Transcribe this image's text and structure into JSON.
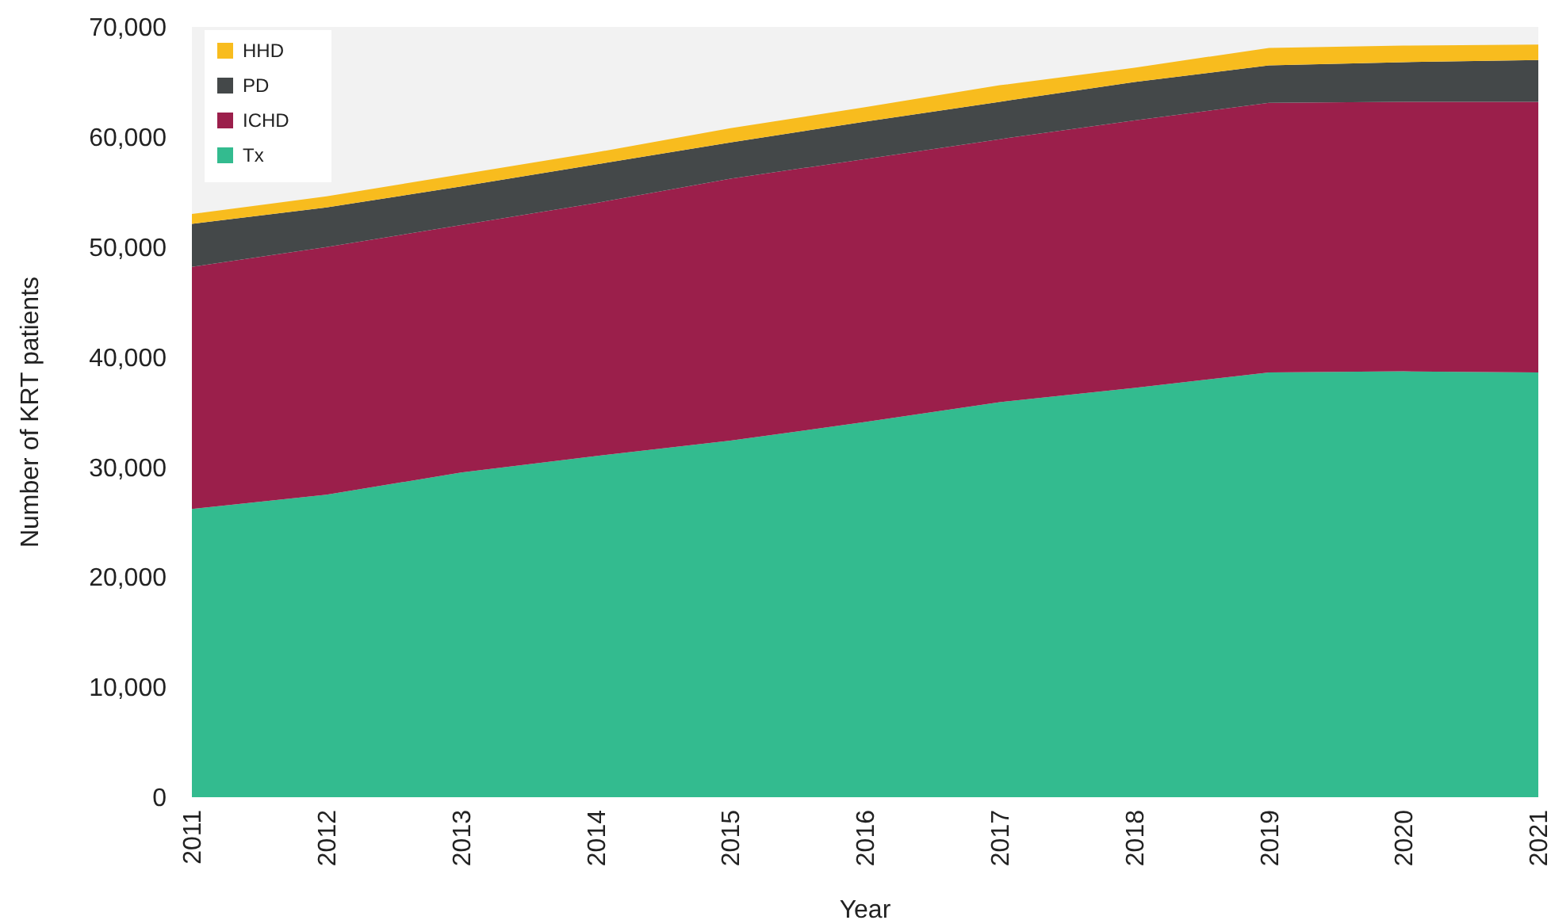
{
  "chart_data": {
    "type": "area",
    "stacked": true,
    "xlabel": "Year",
    "ylabel": "Number of KRT patients",
    "categories": [
      "2011",
      "2012",
      "2013",
      "2014",
      "2015",
      "2016",
      "2017",
      "2018",
      "2019",
      "2020",
      "2021"
    ],
    "ylim": [
      0,
      70000
    ],
    "yticks": [
      {
        "value": 0,
        "label": "0"
      },
      {
        "value": 10000,
        "label": "10,000"
      },
      {
        "value": 20000,
        "label": "20,000"
      },
      {
        "value": 30000,
        "label": "30,000"
      },
      {
        "value": 40000,
        "label": "40,000"
      },
      {
        "value": 50000,
        "label": "50,000"
      },
      {
        "value": 60000,
        "label": "60,000"
      },
      {
        "value": 70000,
        "label": "70,000"
      }
    ],
    "grid": false,
    "legend": "top left",
    "series": [
      {
        "name": "Tx",
        "color": "#33bb8f",
        "values": [
          26200,
          27500,
          29500,
          31000,
          32400,
          34100,
          35900,
          37200,
          38600,
          38700,
          38600
        ]
      },
      {
        "name": "ICHD",
        "color": "#9b1f4b",
        "values": [
          22000,
          22500,
          22500,
          23000,
          23800,
          23900,
          23900,
          24300,
          24500,
          24500,
          24600
        ]
      },
      {
        "name": "PD",
        "color": "#444849",
        "values": [
          3900,
          3600,
          3500,
          3500,
          3300,
          3400,
          3400,
          3500,
          3400,
          3600,
          3800
        ]
      },
      {
        "name": "HHD",
        "color": "#f8bc1e",
        "values": [
          900,
          1000,
          1100,
          1100,
          1300,
          1300,
          1500,
          1300,
          1600,
          1500,
          1400
        ]
      }
    ]
  }
}
